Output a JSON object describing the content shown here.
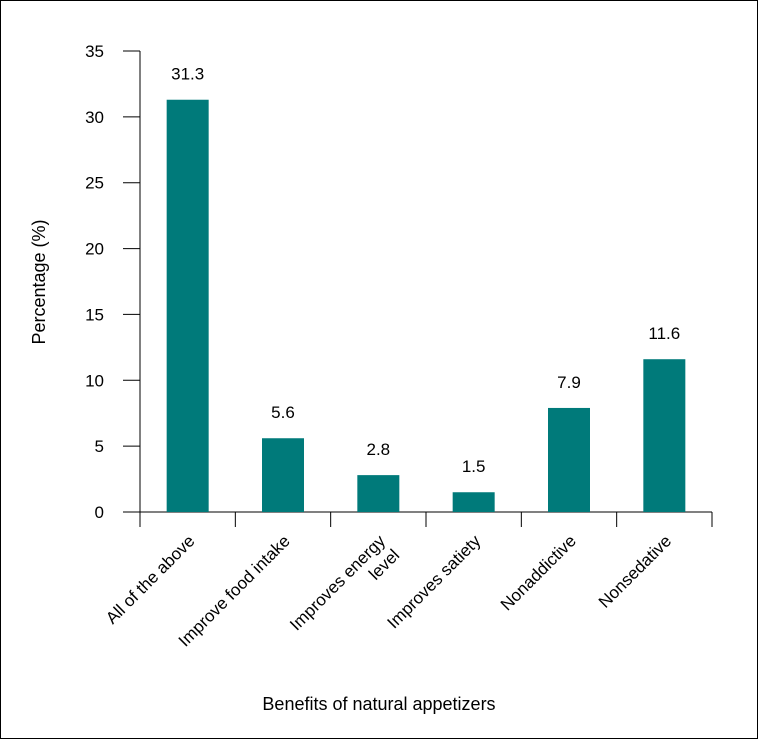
{
  "chart_data": {
    "type": "bar",
    "title": "",
    "xlabel": "Benefits of natural appetizers",
    "ylabel": "Percentage (%)",
    "ylim": [
      0,
      35
    ],
    "yticks": [
      0,
      5,
      10,
      15,
      20,
      25,
      30,
      35
    ],
    "categories": [
      [
        "All of the above"
      ],
      [
        "Improve food intake"
      ],
      [
        "Improves energy",
        "level"
      ],
      [
        "Improves satiety"
      ],
      [
        "Nonaddictive"
      ],
      [
        "Nonsedative"
      ]
    ],
    "values": [
      31.3,
      5.6,
      2.8,
      1.5,
      7.9,
      11.6
    ],
    "value_labels": [
      "31.3",
      "5.6",
      "2.8",
      "1.5",
      "7.9",
      "11.6"
    ],
    "bar_color": "#007a7a",
    "grid": false,
    "legend": "none"
  }
}
